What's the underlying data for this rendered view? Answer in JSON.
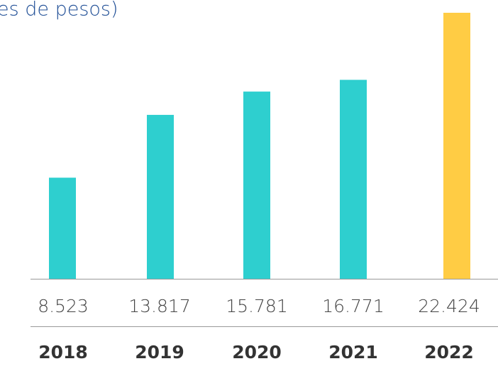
{
  "chart_data": {
    "type": "bar",
    "title": "es de pesos)",
    "categories": [
      "2018",
      "2019",
      "2020",
      "2021",
      "2022"
    ],
    "values": [
      8523,
      13817,
      15781,
      16771,
      22424
    ],
    "value_labels": [
      "8.523",
      "13.817",
      "15.781",
      "16.771",
      "22.424"
    ],
    "colors": [
      "#2ecfcf",
      "#2ecfcf",
      "#2ecfcf",
      "#2ecfcf",
      "#ffcc44"
    ]
  }
}
